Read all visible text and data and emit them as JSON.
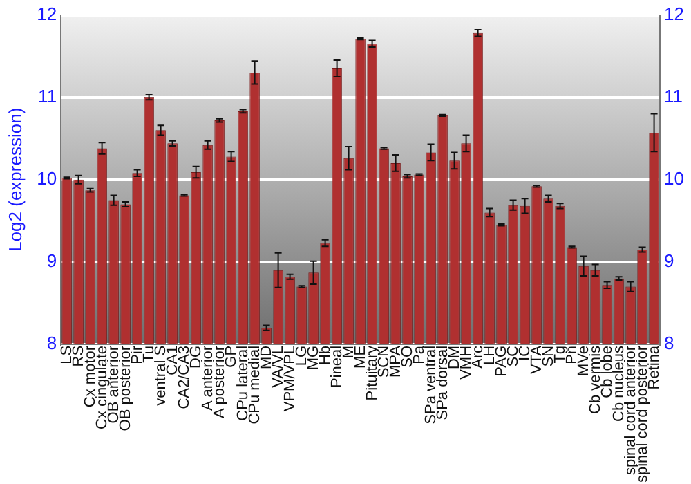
{
  "chart_data": {
    "type": "bar",
    "ylabel": "Log2 (expression)",
    "categories": [
      "LS",
      "RS",
      "Cx motor",
      "Cx cingulate",
      "OB anterior",
      "OB posterior",
      "Pir",
      "Tu",
      "ventral S",
      "CA1",
      "CA2/CA3",
      "DG",
      "A anterior",
      "A posterior",
      "GP",
      "CPu lateral",
      "CPu medial",
      "MD",
      "VA/VL",
      "VPM/VPL",
      "LG",
      "MG",
      "Hb",
      "Pineal",
      "M",
      "ME",
      "Pituitary",
      "SCN",
      "MPA",
      "SO",
      "Pa",
      "SPa ventral",
      "SPa dorsal",
      "DM",
      "VMH",
      "Arc",
      "LH",
      "PAG",
      "SC",
      "IC",
      "VTA",
      "SN",
      "Tg",
      "Pn",
      "MVe",
      "Cb vermis",
      "Cb lobe",
      "Cb nucleus",
      "spinal cord anterior",
      "spinal cord posterior",
      "Retina"
    ],
    "values": [
      10.02,
      10.0,
      9.87,
      10.38,
      9.75,
      9.7,
      10.08,
      11.0,
      10.6,
      10.44,
      9.81,
      10.09,
      10.42,
      10.72,
      10.28,
      10.83,
      11.3,
      8.2,
      8.9,
      8.82,
      8.7,
      8.87,
      9.23,
      11.35,
      10.26,
      11.71,
      11.65,
      10.38,
      10.2,
      10.04,
      10.06,
      10.33,
      10.78,
      10.23,
      10.44,
      11.78,
      9.6,
      9.45,
      9.69,
      9.68,
      9.92,
      9.77,
      9.68,
      9.18,
      8.95,
      8.9,
      8.72,
      8.8,
      8.7,
      9.15,
      10.57
    ],
    "errors": [
      0.01,
      0.05,
      0.02,
      0.07,
      0.06,
      0.03,
      0.04,
      0.03,
      0.06,
      0.03,
      0.01,
      0.07,
      0.05,
      0.02,
      0.06,
      0.02,
      0.14,
      0.03,
      0.21,
      0.03,
      0.01,
      0.14,
      0.04,
      0.1,
      0.14,
      0.01,
      0.04,
      0.01,
      0.1,
      0.02,
      0.01,
      0.1,
      0.01,
      0.1,
      0.1,
      0.04,
      0.05,
      0.01,
      0.06,
      0.09,
      0.01,
      0.04,
      0.03,
      0.01,
      0.12,
      0.07,
      0.04,
      0.02,
      0.06,
      0.03,
      0.23
    ],
    "color": "#b03030",
    "ylim": [
      8,
      12
    ],
    "yticks": [
      8,
      9,
      10,
      11,
      12
    ],
    "y2lim": [
      8,
      12
    ],
    "y2ticks": [
      8,
      9,
      10,
      11,
      12
    ],
    "grid": "y",
    "legend": false
  }
}
